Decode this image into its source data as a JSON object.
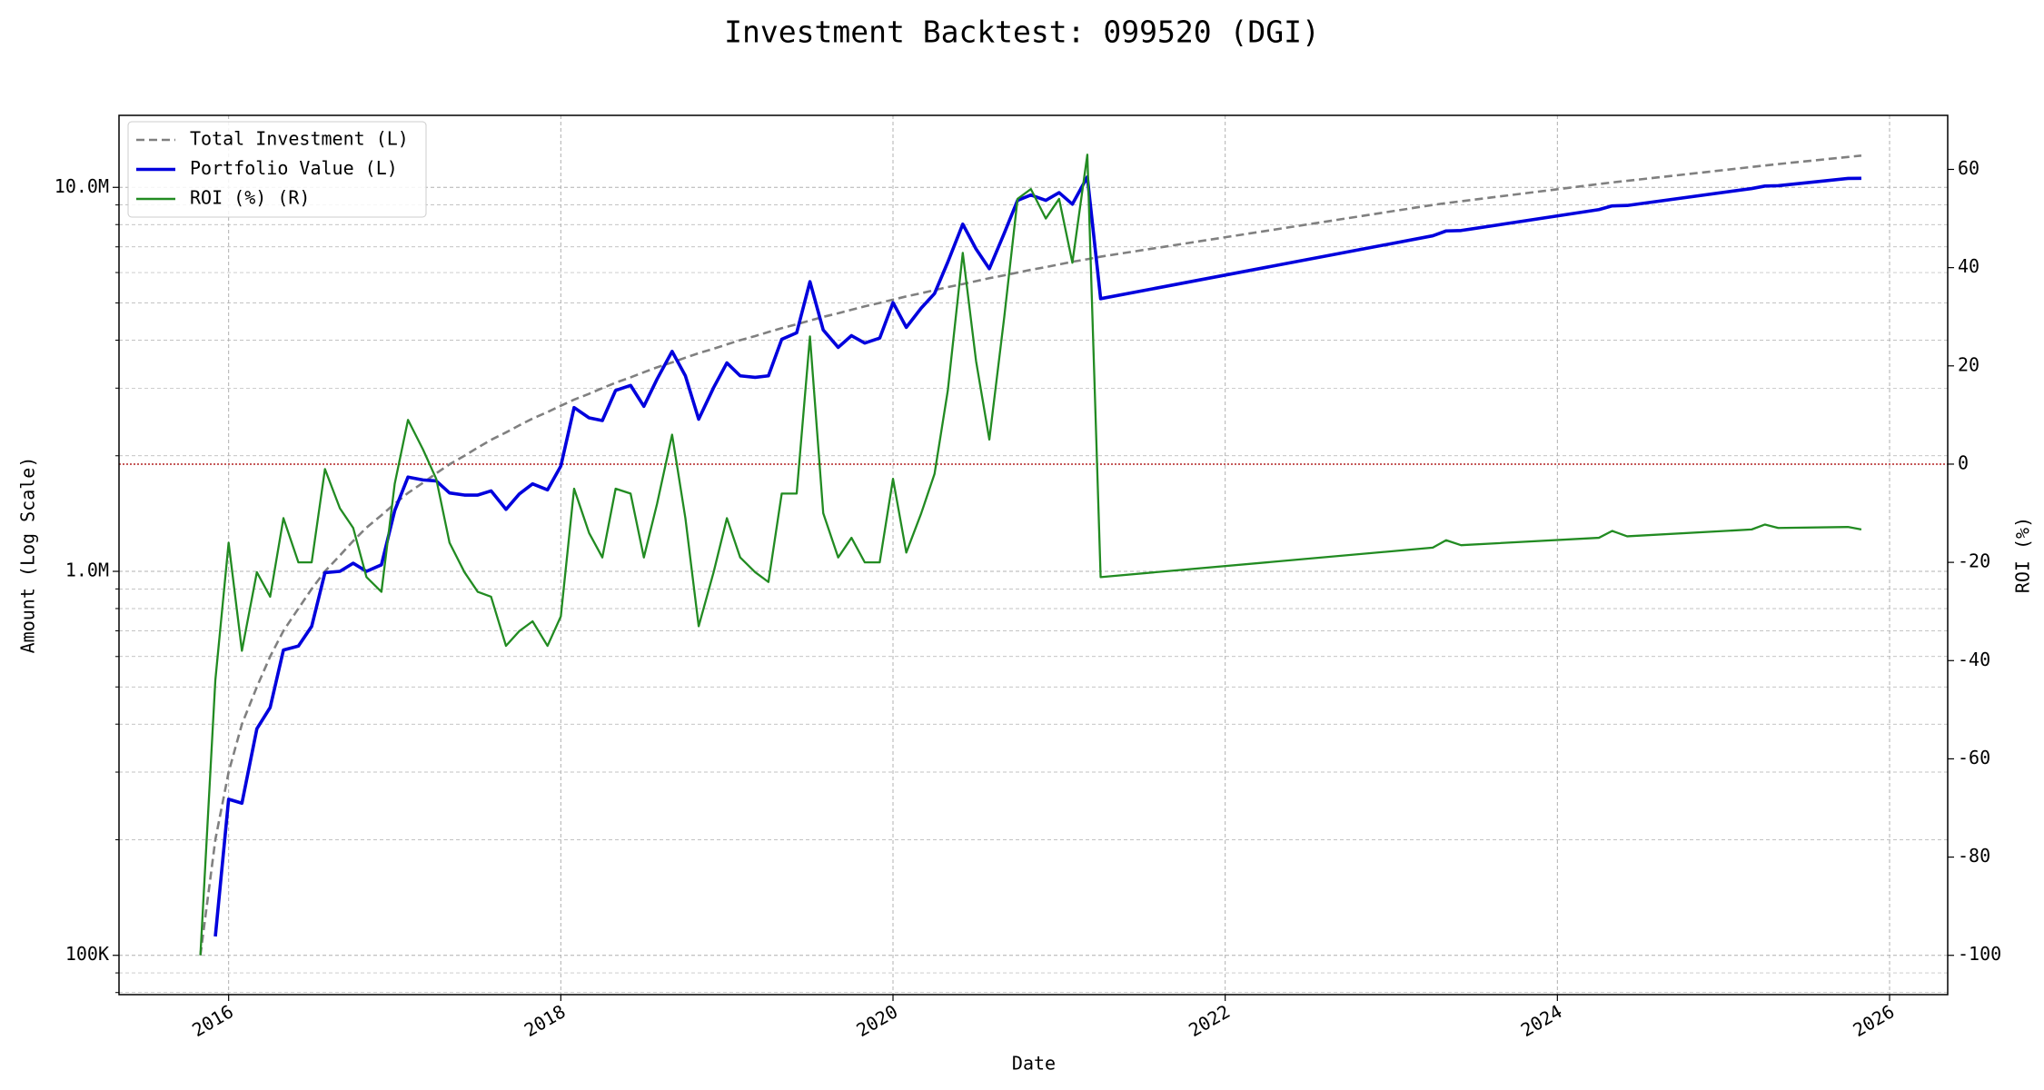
{
  "chart_data": {
    "type": "line",
    "title": "Investment Backtest: 099520 (DGI)",
    "x_label": "Date",
    "y_label": "Amount (Log Scale)",
    "y2_label": "ROI (%)",
    "yscale": "log",
    "grid": true,
    "legend": "upper left",
    "x": [
      2015.83,
      2015.92,
      2016.0,
      2016.08,
      2016.17,
      2016.25,
      2016.33,
      2016.42,
      2016.5,
      2016.58,
      2016.67,
      2016.75,
      2016.83,
      2016.92,
      2017.0,
      2017.08,
      2017.17,
      2017.25,
      2017.33,
      2017.42,
      2017.5,
      2017.58,
      2017.67,
      2017.75,
      2017.83,
      2017.92,
      2018.0,
      2018.08,
      2018.17,
      2018.25,
      2018.33,
      2018.42,
      2018.5,
      2018.58,
      2018.67,
      2018.75,
      2018.83,
      2018.92,
      2019.0,
      2019.08,
      2019.17,
      2019.25,
      2019.33,
      2019.42,
      2019.5,
      2019.58,
      2019.67,
      2019.75,
      2019.83,
      2019.92,
      2020.0,
      2020.08,
      2020.17,
      2020.25,
      2020.33,
      2020.42,
      2020.5,
      2020.58,
      2020.67,
      2020.75,
      2020.83,
      2020.92,
      2021.0,
      2021.08,
      2021.17,
      2021.25,
      2023.25,
      2023.33,
      2023.42,
      2024.25,
      2024.33,
      2024.42,
      2025.17,
      2025.25,
      2025.33,
      2025.75,
      2025.83
    ],
    "series": [
      {
        "name": "Total Investment (L)",
        "color": "#808080",
        "linestyle": "dashed",
        "axis": "y",
        "values": [
          100000,
          200000,
          300000,
          400000,
          500000,
          600000,
          700000,
          800000,
          900000,
          1000000,
          1100000,
          1200000,
          1300000,
          1400000,
          1500000,
          1600000,
          1700000,
          1800000,
          1900000,
          2000000,
          2100000,
          2200000,
          2300000,
          2400000,
          2500000,
          2600000,
          2700000,
          2800000,
          2900000,
          3000000,
          3100000,
          3200000,
          3300000,
          3400000,
          3500000,
          3600000,
          3700000,
          3800000,
          3900000,
          4000000,
          4100000,
          4200000,
          4300000,
          4400000,
          4500000,
          4600000,
          4700000,
          4800000,
          4900000,
          5000000,
          5100000,
          5200000,
          5300000,
          5400000,
          5500000,
          5600000,
          5700000,
          5800000,
          5900000,
          6000000,
          6100000,
          6200000,
          6300000,
          6400000,
          6500000,
          6600000,
          9000000,
          9100000,
          9200000,
          10200000,
          10300000,
          10400000,
          11300000,
          11400000,
          11500000,
          12000000,
          12100000
        ]
      },
      {
        "name": "Portfolio Value (L)",
        "color": "#0000dd",
        "linestyle": "solid",
        "axis": "y",
        "values": [
          null,
          112000,
          255000,
          249000,
          389000,
          442000,
          624000,
          639000,
          719000,
          992000,
          1000000,
          1050000,
          1000000,
          1040000,
          1440000,
          1760000,
          1730000,
          1720000,
          1600000,
          1580000,
          1580000,
          1620000,
          1450000,
          1590000,
          1690000,
          1630000,
          1880000,
          2670000,
          2510000,
          2470000,
          2960000,
          3050000,
          2690000,
          3170000,
          3740000,
          3230000,
          2490000,
          3010000,
          3490000,
          3230000,
          3200000,
          3230000,
          4020000,
          4180000,
          5680000,
          4250000,
          3830000,
          4110000,
          3930000,
          4050000,
          5010000,
          4320000,
          4850000,
          5290000,
          6390000,
          8020000,
          6910000,
          6140000,
          7600000,
          9250000,
          9550000,
          9250000,
          9690000,
          9040000,
          10650000,
          5130000,
          7480000,
          7700000,
          7720000,
          8750000,
          8950000,
          8970000,
          9930000,
          10080000,
          10100000,
          10550000,
          10560000
        ]
      },
      {
        "name": "ROI (%) (R)",
        "color": "#228b22",
        "linestyle": "solid",
        "axis": "y2",
        "values": [
          -100,
          -44,
          -16,
          -38,
          -22,
          -27,
          -11,
          -20,
          -20,
          -1,
          -9,
          -13,
          -23,
          -26,
          -4,
          9,
          3,
          -3,
          -16,
          -22,
          -26,
          -27,
          -37,
          -34,
          -32,
          -37,
          -31,
          -5,
          -14,
          -19,
          -5,
          -6,
          -19,
          -8,
          6,
          -11,
          -33,
          -22,
          -11,
          -19,
          -22,
          -24,
          -6,
          -6,
          26,
          -10,
          -19,
          -15,
          -20,
          -20,
          -3,
          -18,
          -10,
          -2,
          15,
          43,
          21,
          5,
          30,
          54,
          56,
          50,
          54,
          41,
          63,
          -23,
          -17,
          -15.5,
          -16.5,
          -15,
          -13.6,
          -14.7,
          -13.3,
          -12.3,
          -13,
          -12.8,
          -13.3
        ]
      }
    ],
    "reference_line": {
      "value": 0,
      "axis": "y2",
      "color": "#b22222"
    },
    "xlim": [
      2015.34,
      2026.35
    ],
    "xticks": [
      2016,
      2018,
      2020,
      2022,
      2024,
      2026
    ],
    "ylim": [
      79000,
      15400000
    ],
    "yticks": [
      {
        "value": 100000,
        "label": "100K"
      },
      {
        "value": 1000000,
        "label": "1.0M"
      },
      {
        "value": 10000000,
        "label": "10.0M"
      }
    ],
    "yminorticks": [
      80000,
      90000,
      200000,
      300000,
      400000,
      500000,
      600000,
      700000,
      800000,
      900000,
      2000000,
      3000000,
      4000000,
      5000000,
      6000000,
      7000000,
      8000000,
      9000000
    ],
    "y_color": "#0000dd",
    "y2_color": "#228b22",
    "y2lim": [
      -108,
      71
    ],
    "y2ticks": [
      -100,
      -80,
      -60,
      -40,
      -20,
      0,
      20,
      40,
      60
    ]
  }
}
